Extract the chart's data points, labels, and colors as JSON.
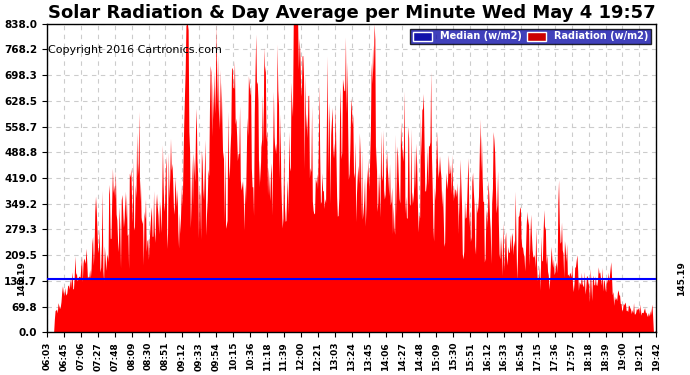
{
  "title": "Solar Radiation & Day Average per Minute Wed May 4 19:57",
  "copyright": "Copyright 2016 Cartronics.com",
  "median_value": 145.19,
  "ymin": 0.0,
  "ymax": 838.0,
  "yticks": [
    0.0,
    69.8,
    139.7,
    209.5,
    279.3,
    349.2,
    419.0,
    488.8,
    558.7,
    628.5,
    698.3,
    768.2,
    838.0
  ],
  "ytick_labels": [
    "0.0",
    "69.8",
    "139.7",
    "209.5",
    "279.3",
    "349.2",
    "419.0",
    "488.8",
    "558.7",
    "628.5",
    "698.3",
    "768.2",
    "838.0"
  ],
  "background_color": "#ffffff",
  "grid_color": "#cccccc",
  "radiation_fill_color": "#ff0000",
  "median_line_color": "#0000ff",
  "title_fontsize": 13,
  "copyright_fontsize": 8,
  "xtick_labels": [
    "06:03",
    "06:45",
    "07:06",
    "07:27",
    "07:48",
    "08:09",
    "08:30",
    "08:51",
    "09:12",
    "09:33",
    "09:54",
    "10:15",
    "10:36",
    "11:18",
    "11:39",
    "12:00",
    "12:21",
    "13:03",
    "13:24",
    "13:45",
    "14:06",
    "14:27",
    "14:48",
    "15:09",
    "15:30",
    "15:51",
    "16:12",
    "16:33",
    "16:54",
    "17:15",
    "17:36",
    "17:57",
    "18:18",
    "18:39",
    "19:00",
    "19:21",
    "19:42"
  ],
  "num_points": 830
}
